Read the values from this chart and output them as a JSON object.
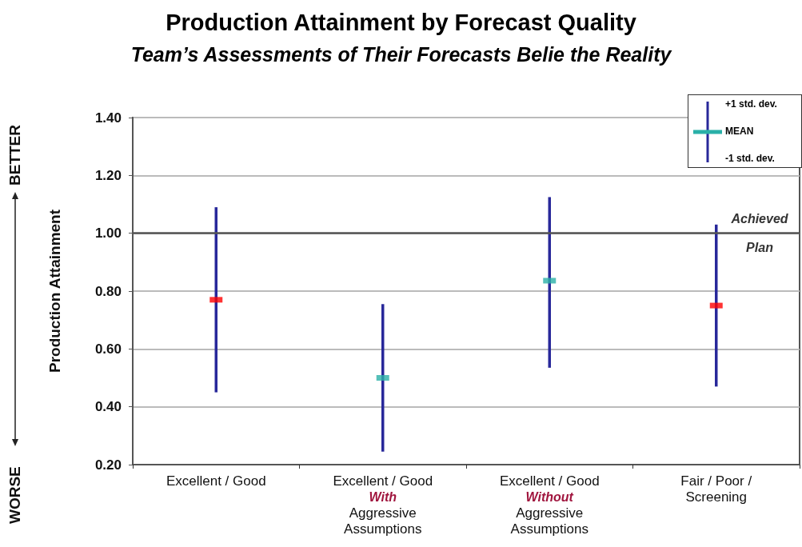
{
  "chart_data": {
    "type": "scatter",
    "title": "Production Attainment by Forecast Quality",
    "subtitle": "Team’s Assessments of Their Forecasts Belie the Reality",
    "ylabel": "Production Attainment",
    "categories": [
      "Excellent / Good",
      "Excellent / Good\nWith\nAggressive\nAssumptions",
      "Excellent / Good\nWithout\nAggressive\nAssumptions",
      "Fair / Poor /\nScreening"
    ],
    "series": [
      {
        "color": "#28289a",
        "colors": [
          "#ff0000",
          "#2ab0a8",
          "#2ab0a8",
          "#ff0000"
        ],
        "values": [
          0.77,
          0.5,
          0.836,
          0.75
        ],
        "errors": [
          [
            0.45,
            1.09
          ],
          [
            0.245,
            0.755
          ],
          [
            0.535,
            1.125
          ],
          [
            0.47,
            1.03
          ]
        ]
      }
    ],
    "ylim": [
      0.2,
      1.4
    ],
    "yticks": [
      {
        "value": 0.2,
        "label": "0.20"
      },
      {
        "value": 0.4,
        "label": "0.40"
      },
      {
        "value": 0.6,
        "label": "0.60"
      },
      {
        "value": 0.8,
        "label": "0.80"
      },
      {
        "value": 1.0,
        "label": "1.00"
      },
      {
        "value": 1.2,
        "label": "1.20"
      },
      {
        "value": 1.4,
        "label": "1.40"
      }
    ],
    "grid": "y",
    "ref_lines": [
      {
        "axis": "y",
        "value": 1.0,
        "label": "Achieved\nPlan",
        "color": "#555555"
      }
    ],
    "annotations": [
      "+1 std. dev.",
      "MEAN",
      "-1 std. dev.",
      "BETTER",
      "WORSE"
    ]
  }
}
